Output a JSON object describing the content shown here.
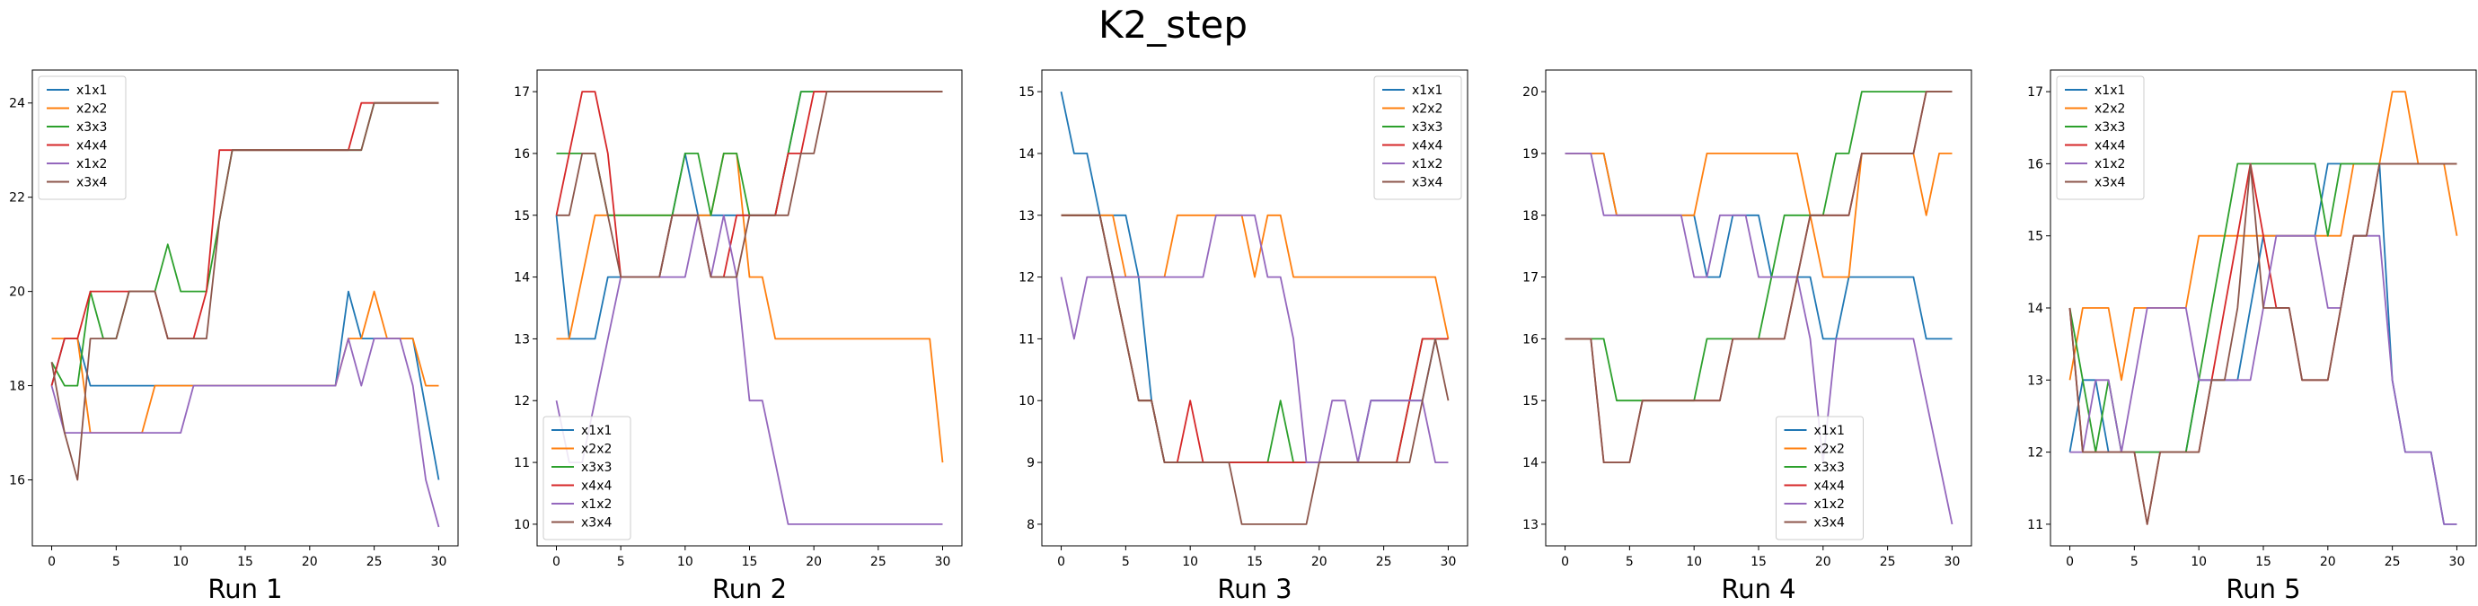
{
  "figure": {
    "suptitle": "K2_step"
  },
  "colors": [
    "#1f77b4",
    "#ff7f0e",
    "#2ca02c",
    "#d62728",
    "#9467bd",
    "#8c564b"
  ],
  "chart_data": [
    {
      "type": "line",
      "title": "",
      "xlabel": "Run 1",
      "ylabel": "",
      "xlim": [
        -1.5,
        31.5
      ],
      "ylim": [
        14.6,
        24.7
      ],
      "xticks": [
        0,
        5,
        10,
        15,
        20,
        25,
        30
      ],
      "yticks": [
        16,
        18,
        20,
        22,
        24
      ],
      "legend": "top-left",
      "series": [
        {
          "name": "x1x1",
          "values": [
            18,
            19,
            19,
            18,
            18,
            18,
            18,
            18,
            18,
            18,
            18,
            18,
            18,
            18,
            18,
            18,
            18,
            18,
            18,
            18,
            18,
            18,
            18,
            20,
            19,
            19,
            19,
            19,
            19,
            17.5,
            16
          ]
        },
        {
          "name": "x2x2",
          "values": [
            19,
            19,
            19,
            17,
            17,
            17,
            17,
            17,
            18,
            18,
            18,
            18,
            18,
            18,
            18,
            18,
            18,
            18,
            18,
            18,
            18,
            18,
            18,
            19,
            19,
            20,
            19,
            19,
            19,
            18,
            18
          ]
        },
        {
          "name": "x3x3",
          "values": [
            18.5,
            18,
            18,
            20,
            19,
            19,
            20,
            20,
            20,
            21,
            20,
            20,
            20,
            21.5,
            23,
            23,
            23,
            23,
            23,
            23,
            23,
            23,
            23,
            23,
            23,
            24,
            24,
            24,
            24,
            24,
            24
          ]
        },
        {
          "name": "x4x4",
          "values": [
            18,
            19,
            19,
            20,
            20,
            20,
            20,
            20,
            20,
            19,
            19,
            19,
            20,
            23,
            23,
            23,
            23,
            23,
            23,
            23,
            23,
            23,
            23,
            23,
            24,
            24,
            24,
            24,
            24,
            24,
            24
          ]
        },
        {
          "name": "x1x2",
          "values": [
            18,
            17,
            17,
            17,
            17,
            17,
            17,
            17,
            17,
            17,
            17,
            18,
            18,
            18,
            18,
            18,
            18,
            18,
            18,
            18,
            18,
            18,
            18,
            19,
            18,
            19,
            19,
            19,
            18,
            16,
            15
          ]
        },
        {
          "name": "x3x4",
          "values": [
            18.5,
            17,
            16,
            19,
            19,
            19,
            20,
            20,
            20,
            19,
            19,
            19,
            19,
            21.5,
            23,
            23,
            23,
            23,
            23,
            23,
            23,
            23,
            23,
            23,
            23,
            24,
            24,
            24,
            24,
            24,
            24
          ]
        }
      ]
    },
    {
      "type": "line",
      "title": "",
      "xlabel": "Run 2",
      "ylabel": "",
      "xlim": [
        -1.5,
        31.5
      ],
      "ylim": [
        9.65,
        17.35
      ],
      "xticks": [
        0,
        5,
        10,
        15,
        20,
        25,
        30
      ],
      "yticks": [
        10,
        11,
        12,
        13,
        14,
        15,
        16,
        17
      ],
      "legend": "bottom-left",
      "series": [
        {
          "name": "x1x1",
          "values": [
            15,
            13,
            13,
            13,
            14,
            14,
            14,
            14,
            14,
            15,
            16,
            15,
            15,
            15,
            15,
            15,
            15,
            15,
            16,
            17,
            17,
            17,
            17,
            17,
            17,
            17,
            17,
            17,
            17,
            17,
            17
          ]
        },
        {
          "name": "x2x2",
          "values": [
            13,
            13,
            14,
            15,
            15,
            15,
            15,
            15,
            15,
            15,
            15,
            15,
            15,
            16,
            16,
            14,
            14,
            13,
            13,
            13,
            13,
            13,
            13,
            13,
            13,
            13,
            13,
            13,
            13,
            13,
            11
          ]
        },
        {
          "name": "x3x3",
          "values": [
            16,
            16,
            16,
            16,
            15,
            15,
            15,
            15,
            15,
            15,
            16,
            16,
            15,
            16,
            16,
            15,
            15,
            15,
            16,
            17,
            17,
            17,
            17,
            17,
            17,
            17,
            17,
            17,
            17,
            17,
            17
          ]
        },
        {
          "name": "x4x4",
          "values": [
            15,
            16,
            17,
            17,
            16,
            14,
            14,
            14,
            14,
            15,
            15,
            15,
            14,
            14,
            15,
            15,
            15,
            15,
            16,
            16,
            17,
            17,
            17,
            17,
            17,
            17,
            17,
            17,
            17,
            17,
            17
          ]
        },
        {
          "name": "x1x2",
          "values": [
            12,
            11,
            11,
            12,
            13,
            14,
            14,
            14,
            14,
            14,
            14,
            15,
            14,
            15,
            14,
            12,
            12,
            11,
            10,
            10,
            10,
            10,
            10,
            10,
            10,
            10,
            10,
            10,
            10,
            10,
            10
          ]
        },
        {
          "name": "x3x4",
          "values": [
            15,
            15,
            16,
            16,
            15,
            14,
            14,
            14,
            14,
            15,
            15,
            15,
            14,
            14,
            14,
            15,
            15,
            15,
            15,
            16,
            16,
            17,
            17,
            17,
            17,
            17,
            17,
            17,
            17,
            17,
            17
          ]
        }
      ]
    },
    {
      "type": "line",
      "title": "",
      "xlabel": "Run 3",
      "ylabel": "",
      "xlim": [
        -1.5,
        31.5
      ],
      "ylim": [
        7.65,
        15.35
      ],
      "xticks": [
        0,
        5,
        10,
        15,
        20,
        25,
        30
      ],
      "yticks": [
        8,
        9,
        10,
        11,
        12,
        13,
        14,
        15
      ],
      "legend": "top-right",
      "series": [
        {
          "name": "x1x1",
          "values": [
            15,
            14,
            14,
            13,
            13,
            13,
            12,
            10,
            9,
            9,
            9,
            9,
            9,
            9,
            9,
            9,
            9,
            9,
            9,
            9,
            9,
            9,
            9,
            9,
            10,
            10,
            10,
            10,
            10,
            11,
            11
          ]
        },
        {
          "name": "x2x2",
          "values": [
            13,
            13,
            13,
            13,
            13,
            12,
            12,
            12,
            12,
            13,
            13,
            13,
            13,
            13,
            13,
            12,
            13,
            13,
            12,
            12,
            12,
            12,
            12,
            12,
            12,
            12,
            12,
            12,
            12,
            12,
            11
          ]
        },
        {
          "name": "x3x3",
          "values": [
            13,
            13,
            13,
            13,
            12,
            11,
            10,
            10,
            9,
            9,
            9,
            9,
            9,
            9,
            9,
            9,
            9,
            10,
            9,
            9,
            9,
            9,
            9,
            9,
            9,
            9,
            9,
            10,
            11,
            11,
            11
          ]
        },
        {
          "name": "x4x4",
          "values": [
            13,
            13,
            13,
            13,
            12,
            11,
            10,
            10,
            9,
            9,
            10,
            9,
            9,
            9,
            9,
            9,
            9,
            9,
            9,
            9,
            9,
            9,
            9,
            9,
            9,
            9,
            9,
            10,
            11,
            11,
            11
          ]
        },
        {
          "name": "x1x2",
          "values": [
            12,
            11,
            12,
            12,
            12,
            12,
            12,
            12,
            12,
            12,
            12,
            12,
            13,
            13,
            13,
            13,
            12,
            12,
            11,
            9,
            9,
            10,
            10,
            9,
            10,
            10,
            10,
            10,
            10,
            9,
            9
          ]
        },
        {
          "name": "x3x4",
          "values": [
            13,
            13,
            13,
            13,
            12,
            11,
            10,
            10,
            9,
            9,
            9,
            9,
            9,
            9,
            8,
            8,
            8,
            8,
            8,
            8,
            9,
            9,
            9,
            9,
            9,
            9,
            9,
            9,
            10,
            11,
            10
          ]
        }
      ]
    },
    {
      "type": "line",
      "title": "",
      "xlabel": "Run 4",
      "ylabel": "",
      "xlim": [
        -1.5,
        31.5
      ],
      "ylim": [
        12.65,
        20.35
      ],
      "xticks": [
        0,
        5,
        10,
        15,
        20,
        25,
        30
      ],
      "yticks": [
        13,
        14,
        15,
        16,
        17,
        18,
        19,
        20
      ],
      "legend": "bottom-center",
      "series": [
        {
          "name": "x1x1",
          "values": [
            19,
            19,
            19,
            19,
            18,
            18,
            18,
            18,
            18,
            18,
            18,
            17,
            17,
            18,
            18,
            18,
            17,
            17,
            17,
            17,
            16,
            16,
            17,
            17,
            17,
            17,
            17,
            17,
            16,
            16,
            16
          ]
        },
        {
          "name": "x2x2",
          "values": [
            19,
            19,
            19,
            19,
            18,
            18,
            18,
            18,
            18,
            18,
            18,
            19,
            19,
            19,
            19,
            19,
            19,
            19,
            19,
            18,
            17,
            17,
            17,
            19,
            19,
            19,
            19,
            19,
            18,
            19,
            19
          ]
        },
        {
          "name": "x3x3",
          "values": [
            16,
            16,
            16,
            16,
            15,
            15,
            15,
            15,
            15,
            15,
            15,
            16,
            16,
            16,
            16,
            16,
            17,
            18,
            18,
            18,
            18,
            19,
            19,
            20,
            20,
            20,
            20,
            20,
            20,
            20,
            20
          ]
        },
        {
          "name": "x4x4",
          "values": [
            16,
            16,
            16,
            14,
            14,
            14,
            15,
            15,
            15,
            15,
            15,
            15,
            15,
            16,
            16,
            16,
            16,
            16,
            17,
            18,
            18,
            18,
            18,
            19,
            19,
            19,
            19,
            19,
            20,
            20,
            20
          ]
        },
        {
          "name": "x1x2",
          "values": [
            19,
            19,
            19,
            18,
            18,
            18,
            18,
            18,
            18,
            18,
            17,
            17,
            18,
            18,
            18,
            17,
            17,
            17,
            17,
            16,
            14,
            16,
            16,
            16,
            16,
            16,
            16,
            16,
            15,
            14,
            13
          ]
        },
        {
          "name": "x3x4",
          "values": [
            16,
            16,
            16,
            14,
            14,
            14,
            15,
            15,
            15,
            15,
            15,
            15,
            15,
            16,
            16,
            16,
            16,
            16,
            17,
            18,
            18,
            18,
            18,
            19,
            19,
            19,
            19,
            19,
            20,
            20,
            20
          ]
        }
      ]
    },
    {
      "type": "line",
      "title": "",
      "xlabel": "Run 5",
      "ylabel": "",
      "xlim": [
        -1.5,
        31.5
      ],
      "ylim": [
        10.7,
        17.3
      ],
      "xticks": [
        0,
        5,
        10,
        15,
        20,
        25,
        30
      ],
      "yticks": [
        11,
        12,
        13,
        14,
        15,
        16,
        17
      ],
      "legend": "top-left",
      "series": [
        {
          "name": "x1x1",
          "values": [
            12,
            13,
            13,
            12,
            12,
            12,
            12,
            12,
            12,
            12,
            13,
            13,
            13,
            13,
            14,
            15,
            15,
            15,
            15,
            15,
            16,
            16,
            16,
            16,
            16,
            13,
            12,
            12,
            12,
            11,
            11
          ]
        },
        {
          "name": "x2x2",
          "values": [
            13,
            14,
            14,
            14,
            13,
            14,
            14,
            14,
            14,
            14,
            15,
            15,
            15,
            15,
            15,
            15,
            15,
            15,
            15,
            15,
            15,
            15,
            16,
            16,
            16,
            17,
            17,
            16,
            16,
            16,
            15
          ]
        },
        {
          "name": "x3x3",
          "values": [
            14,
            13,
            12,
            13,
            12,
            12,
            12,
            12,
            12,
            12,
            13,
            14,
            15,
            16,
            16,
            16,
            16,
            16,
            16,
            16,
            15,
            16,
            16,
            16,
            16,
            16,
            16,
            16,
            16,
            16,
            16
          ]
        },
        {
          "name": "x4x4",
          "values": [
            14,
            12,
            12,
            12,
            12,
            12,
            11,
            12,
            12,
            12,
            12,
            13,
            14,
            15,
            16,
            15,
            14,
            14,
            13,
            13,
            13,
            14,
            15,
            15,
            16,
            16,
            16,
            16,
            16,
            16,
            16
          ]
        },
        {
          "name": "x1x2",
          "values": [
            12,
            12,
            13,
            13,
            12,
            13,
            14,
            14,
            14,
            14,
            13,
            13,
            13,
            13,
            13,
            14,
            15,
            15,
            15,
            15,
            14,
            14,
            15,
            15,
            15,
            13,
            12,
            12,
            12,
            11,
            11
          ]
        },
        {
          "name": "x3x4",
          "values": [
            14,
            12,
            12,
            12,
            12,
            12,
            11,
            12,
            12,
            12,
            12,
            13,
            13,
            14,
            16,
            14,
            14,
            14,
            13,
            13,
            13,
            14,
            15,
            15,
            16,
            16,
            16,
            16,
            16,
            16,
            16
          ]
        }
      ]
    }
  ]
}
